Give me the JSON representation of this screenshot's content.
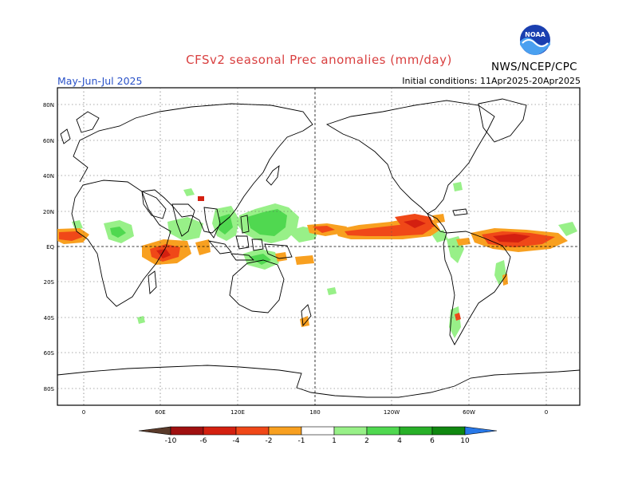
{
  "header": {
    "title": "CFSv2 seasonal Prec anomalies (mm/day)",
    "season": "May-Jun-Jul 2025",
    "initial_conditions": "Initial conditions: 11Apr2025-20Apr2025",
    "agency": "NWS/NCEP/CPC",
    "logo_text": "NOAA"
  },
  "map": {
    "lat_labels": [
      "80N",
      "60N",
      "40N",
      "20N",
      "EQ",
      "20S",
      "40S",
      "60S",
      "80S"
    ],
    "lon_labels": [
      "0",
      "60E",
      "120E",
      "180",
      "120W",
      "60W",
      "0"
    ],
    "grid": "dotted"
  },
  "colorbar": {
    "labels": [
      "-10",
      "-6",
      "-4",
      "-2",
      "-1",
      "1",
      "2",
      "4",
      "6",
      "10"
    ],
    "colors": {
      "lt_-10": "#5a3a2a",
      "-10_-6": "#a01010",
      "-6_-4": "#d42010",
      "-4_-2": "#f04818",
      "-2_-1": "#f8a020",
      "-1_1": "#ffffff",
      "1_2": "#98f088",
      "2_4": "#50d850",
      "4_6": "#28b028",
      "6_10": "#108810",
      "gt_10": "#2878e8"
    }
  }
}
